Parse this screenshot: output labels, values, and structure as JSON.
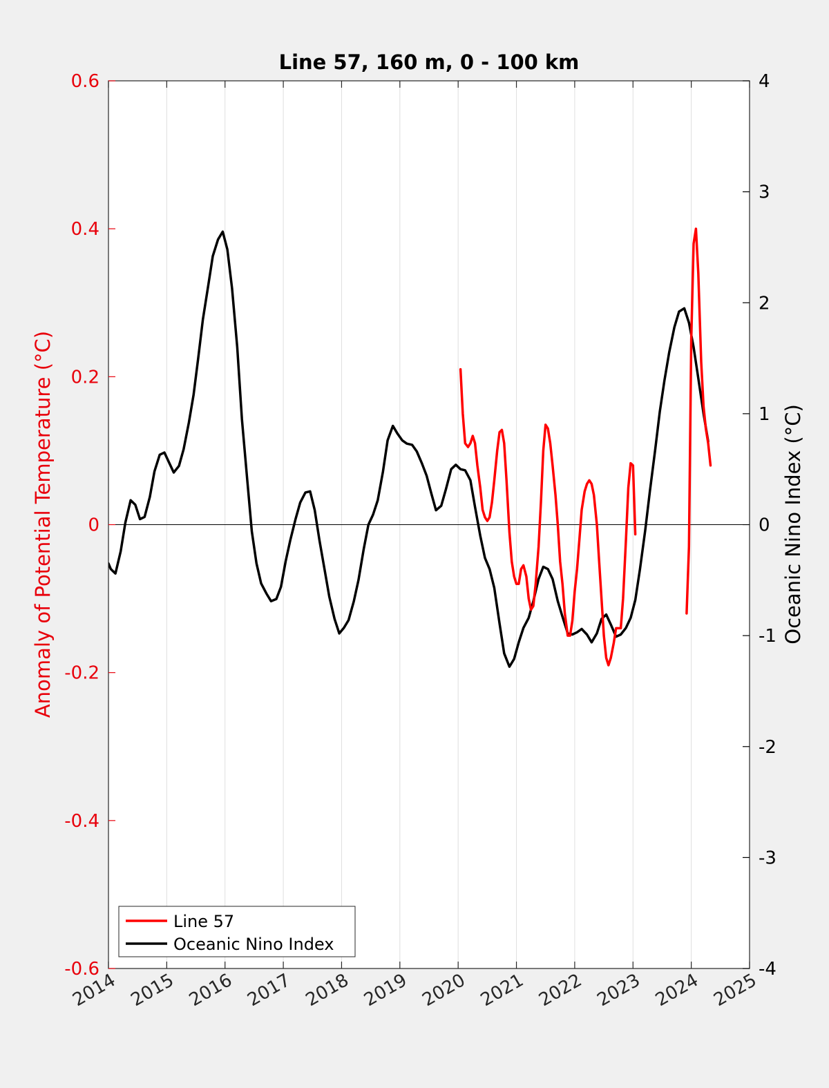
{
  "chart_data": {
    "type": "line",
    "title": "Line 57, 160 m, 0 - 100 km",
    "xlabel": "",
    "ylabel_left": "Anomaly of Potential Temperature (°C)",
    "ylabel_right": "Oceanic Nino Index (°C)",
    "xlim": [
      2014,
      2025
    ],
    "ylim_left": [
      -0.6,
      0.6
    ],
    "ylim_right": [
      -4,
      4
    ],
    "x_ticks": [
      2014,
      2015,
      2016,
      2017,
      2018,
      2019,
      2020,
      2021,
      2022,
      2023,
      2024,
      2025
    ],
    "x_tick_labels": [
      "2014",
      "2015",
      "2016",
      "2017",
      "2018",
      "2019",
      "2020",
      "2021",
      "2022",
      "2023",
      "2024",
      "2025"
    ],
    "y_left_ticks": [
      -0.6,
      -0.4,
      -0.2,
      0,
      0.2,
      0.4,
      0.6
    ],
    "y_left_tick_labels": [
      "-0.6",
      "-0.4",
      "-0.2",
      "0",
      "0.2",
      "0.4",
      "0.6"
    ],
    "y_right_ticks": [
      -4,
      -3,
      -2,
      -1,
      0,
      1,
      2,
      3,
      4
    ],
    "y_right_tick_labels": [
      "-4",
      "-3",
      "-2",
      "-1",
      "0",
      "1",
      "2",
      "3",
      "4"
    ],
    "grid": "vertical",
    "legend_position": "bottom-left",
    "colors": {
      "line57": "#ff0000",
      "oni": "#000000",
      "left_axis": "#e8000b",
      "right_axis": "#000000"
    },
    "series": [
      {
        "name": "Line 57",
        "axis": "left",
        "segments": [
          [
            [
              2020.04,
              0.21
            ],
            [
              2020.08,
              0.15
            ],
            [
              2020.12,
              0.11
            ],
            [
              2020.17,
              0.105
            ],
            [
              2020.21,
              0.11
            ],
            [
              2020.25,
              0.12
            ],
            [
              2020.29,
              0.11
            ],
            [
              2020.33,
              0.08
            ],
            [
              2020.38,
              0.05
            ],
            [
              2020.42,
              0.02
            ],
            [
              2020.46,
              0.01
            ],
            [
              2020.5,
              0.005
            ],
            [
              2020.54,
              0.01
            ],
            [
              2020.58,
              0.03
            ],
            [
              2020.62,
              0.06
            ],
            [
              2020.67,
              0.1
            ],
            [
              2020.71,
              0.125
            ],
            [
              2020.75,
              0.128
            ],
            [
              2020.79,
              0.11
            ],
            [
              2020.83,
              0.06
            ],
            [
              2020.88,
              -0.01
            ],
            [
              2020.92,
              -0.05
            ],
            [
              2020.96,
              -0.07
            ],
            [
              2021.0,
              -0.08
            ],
            [
              2021.04,
              -0.08
            ],
            [
              2021.08,
              -0.06
            ],
            [
              2021.12,
              -0.055
            ],
            [
              2021.17,
              -0.07
            ],
            [
              2021.21,
              -0.1
            ],
            [
              2021.25,
              -0.115
            ],
            [
              2021.29,
              -0.11
            ],
            [
              2021.33,
              -0.08
            ],
            [
              2021.38,
              -0.03
            ],
            [
              2021.42,
              0.03
            ],
            [
              2021.46,
              0.1
            ],
            [
              2021.5,
              0.135
            ],
            [
              2021.54,
              0.13
            ],
            [
              2021.58,
              0.11
            ],
            [
              2021.62,
              0.08
            ],
            [
              2021.67,
              0.04
            ],
            [
              2021.71,
              0.0
            ],
            [
              2021.75,
              -0.05
            ],
            [
              2021.79,
              -0.08
            ],
            [
              2021.83,
              -0.12
            ],
            [
              2021.88,
              -0.15
            ],
            [
              2021.92,
              -0.15
            ],
            [
              2021.96,
              -0.13
            ],
            [
              2022.0,
              -0.09
            ],
            [
              2022.04,
              -0.06
            ],
            [
              2022.08,
              -0.02
            ],
            [
              2022.12,
              0.02
            ],
            [
              2022.17,
              0.045
            ],
            [
              2022.21,
              0.055
            ],
            [
              2022.25,
              0.06
            ],
            [
              2022.29,
              0.055
            ],
            [
              2022.33,
              0.04
            ],
            [
              2022.38,
              0.0
            ],
            [
              2022.42,
              -0.05
            ],
            [
              2022.46,
              -0.1
            ],
            [
              2022.5,
              -0.15
            ],
            [
              2022.54,
              -0.18
            ],
            [
              2022.58,
              -0.19
            ],
            [
              2022.62,
              -0.18
            ],
            [
              2022.67,
              -0.16
            ],
            [
              2022.71,
              -0.14
            ],
            [
              2022.75,
              -0.14
            ],
            [
              2022.79,
              -0.14
            ],
            [
              2022.83,
              -0.1
            ],
            [
              2022.88,
              -0.02
            ],
            [
              2022.92,
              0.05
            ],
            [
              2022.96,
              0.083
            ],
            [
              2023.0,
              0.08
            ],
            [
              2023.04,
              -0.013
            ]
          ],
          [
            [
              2023.92,
              -0.12
            ],
            [
              2023.96,
              -0.03
            ],
            [
              2024.0,
              0.25
            ],
            [
              2024.04,
              0.38
            ],
            [
              2024.08,
              0.4
            ],
            [
              2024.12,
              0.34
            ],
            [
              2024.17,
              0.22
            ],
            [
              2024.21,
              0.16
            ],
            [
              2024.25,
              0.13
            ],
            [
              2024.29,
              0.11
            ],
            [
              2024.33,
              0.08
            ]
          ]
        ]
      },
      {
        "name": "Oceanic Nino Index",
        "axis": "right",
        "segments": [
          [
            [
              2014.0,
              -0.35
            ],
            [
              2014.04,
              -0.4
            ],
            [
              2014.08,
              -0.42
            ],
            [
              2014.12,
              -0.44
            ],
            [
              2014.21,
              -0.24
            ],
            [
              2014.29,
              0.02
            ],
            [
              2014.38,
              0.22
            ],
            [
              2014.46,
              0.18
            ],
            [
              2014.54,
              0.05
            ],
            [
              2014.62,
              0.07
            ],
            [
              2014.71,
              0.25
            ],
            [
              2014.79,
              0.48
            ],
            [
              2014.88,
              0.63
            ],
            [
              2014.96,
              0.65
            ],
            [
              2015.04,
              0.56
            ],
            [
              2015.12,
              0.47
            ],
            [
              2015.21,
              0.53
            ],
            [
              2015.29,
              0.68
            ],
            [
              2015.38,
              0.92
            ],
            [
              2015.46,
              1.17
            ],
            [
              2015.54,
              1.5
            ],
            [
              2015.62,
              1.85
            ],
            [
              2015.71,
              2.15
            ],
            [
              2015.79,
              2.42
            ],
            [
              2015.88,
              2.57
            ],
            [
              2015.96,
              2.64
            ],
            [
              2016.04,
              2.48
            ],
            [
              2016.12,
              2.13
            ],
            [
              2016.21,
              1.6
            ],
            [
              2016.29,
              0.95
            ],
            [
              2016.38,
              0.41
            ],
            [
              2016.46,
              -0.06
            ],
            [
              2016.54,
              -0.35
            ],
            [
              2016.62,
              -0.53
            ],
            [
              2016.71,
              -0.62
            ],
            [
              2016.79,
              -0.69
            ],
            [
              2016.88,
              -0.67
            ],
            [
              2016.96,
              -0.56
            ],
            [
              2017.04,
              -0.33
            ],
            [
              2017.12,
              -0.14
            ],
            [
              2017.21,
              0.05
            ],
            [
              2017.29,
              0.2
            ],
            [
              2017.38,
              0.29
            ],
            [
              2017.46,
              0.3
            ],
            [
              2017.54,
              0.13
            ],
            [
              2017.62,
              -0.14
            ],
            [
              2017.71,
              -0.41
            ],
            [
              2017.79,
              -0.65
            ],
            [
              2017.88,
              -0.85
            ],
            [
              2017.96,
              -0.98
            ],
            [
              2018.04,
              -0.93
            ],
            [
              2018.12,
              -0.86
            ],
            [
              2018.21,
              -0.69
            ],
            [
              2018.29,
              -0.5
            ],
            [
              2018.38,
              -0.22
            ],
            [
              2018.46,
              0.0
            ],
            [
              2018.54,
              0.09
            ],
            [
              2018.62,
              0.22
            ],
            [
              2018.71,
              0.48
            ],
            [
              2018.79,
              0.76
            ],
            [
              2018.88,
              0.89
            ],
            [
              2018.96,
              0.82
            ],
            [
              2019.04,
              0.76
            ],
            [
              2019.12,
              0.73
            ],
            [
              2019.21,
              0.72
            ],
            [
              2019.29,
              0.66
            ],
            [
              2019.38,
              0.55
            ],
            [
              2019.46,
              0.44
            ],
            [
              2019.54,
              0.28
            ],
            [
              2019.62,
              0.13
            ],
            [
              2019.71,
              0.17
            ],
            [
              2019.79,
              0.32
            ],
            [
              2019.88,
              0.5
            ],
            [
              2019.96,
              0.54
            ],
            [
              2020.04,
              0.5
            ],
            [
              2020.12,
              0.49
            ],
            [
              2020.21,
              0.4
            ],
            [
              2020.29,
              0.16
            ],
            [
              2020.38,
              -0.1
            ],
            [
              2020.46,
              -0.3
            ],
            [
              2020.54,
              -0.4
            ],
            [
              2020.62,
              -0.57
            ],
            [
              2020.71,
              -0.89
            ],
            [
              2020.79,
              -1.16
            ],
            [
              2020.88,
              -1.28
            ],
            [
              2020.96,
              -1.21
            ],
            [
              2021.04,
              -1.06
            ],
            [
              2021.12,
              -0.93
            ],
            [
              2021.21,
              -0.84
            ],
            [
              2021.29,
              -0.69
            ],
            [
              2021.38,
              -0.49
            ],
            [
              2021.46,
              -0.38
            ],
            [
              2021.54,
              -0.4
            ],
            [
              2021.62,
              -0.49
            ],
            [
              2021.71,
              -0.69
            ],
            [
              2021.79,
              -0.83
            ],
            [
              2021.88,
              -0.98
            ],
            [
              2021.96,
              -0.99
            ],
            [
              2022.04,
              -0.97
            ],
            [
              2022.12,
              -0.94
            ],
            [
              2022.21,
              -0.99
            ],
            [
              2022.29,
              -1.06
            ],
            [
              2022.38,
              -0.98
            ],
            [
              2022.46,
              -0.85
            ],
            [
              2022.54,
              -0.81
            ],
            [
              2022.62,
              -0.9
            ],
            [
              2022.71,
              -1.01
            ],
            [
              2022.79,
              -0.99
            ],
            [
              2022.88,
              -0.93
            ],
            [
              2022.96,
              -0.84
            ],
            [
              2023.04,
              -0.68
            ],
            [
              2023.12,
              -0.4
            ],
            [
              2023.21,
              -0.05
            ],
            [
              2023.29,
              0.3
            ],
            [
              2023.38,
              0.67
            ],
            [
              2023.46,
              1.02
            ],
            [
              2023.54,
              1.3
            ],
            [
              2023.62,
              1.55
            ],
            [
              2023.71,
              1.78
            ],
            [
              2023.79,
              1.92
            ],
            [
              2023.88,
              1.95
            ],
            [
              2023.96,
              1.82
            ],
            [
              2024.04,
              1.6
            ],
            [
              2024.12,
              1.32
            ],
            [
              2024.21,
              1.0
            ],
            [
              2024.29,
              0.75
            ]
          ]
        ]
      }
    ]
  }
}
